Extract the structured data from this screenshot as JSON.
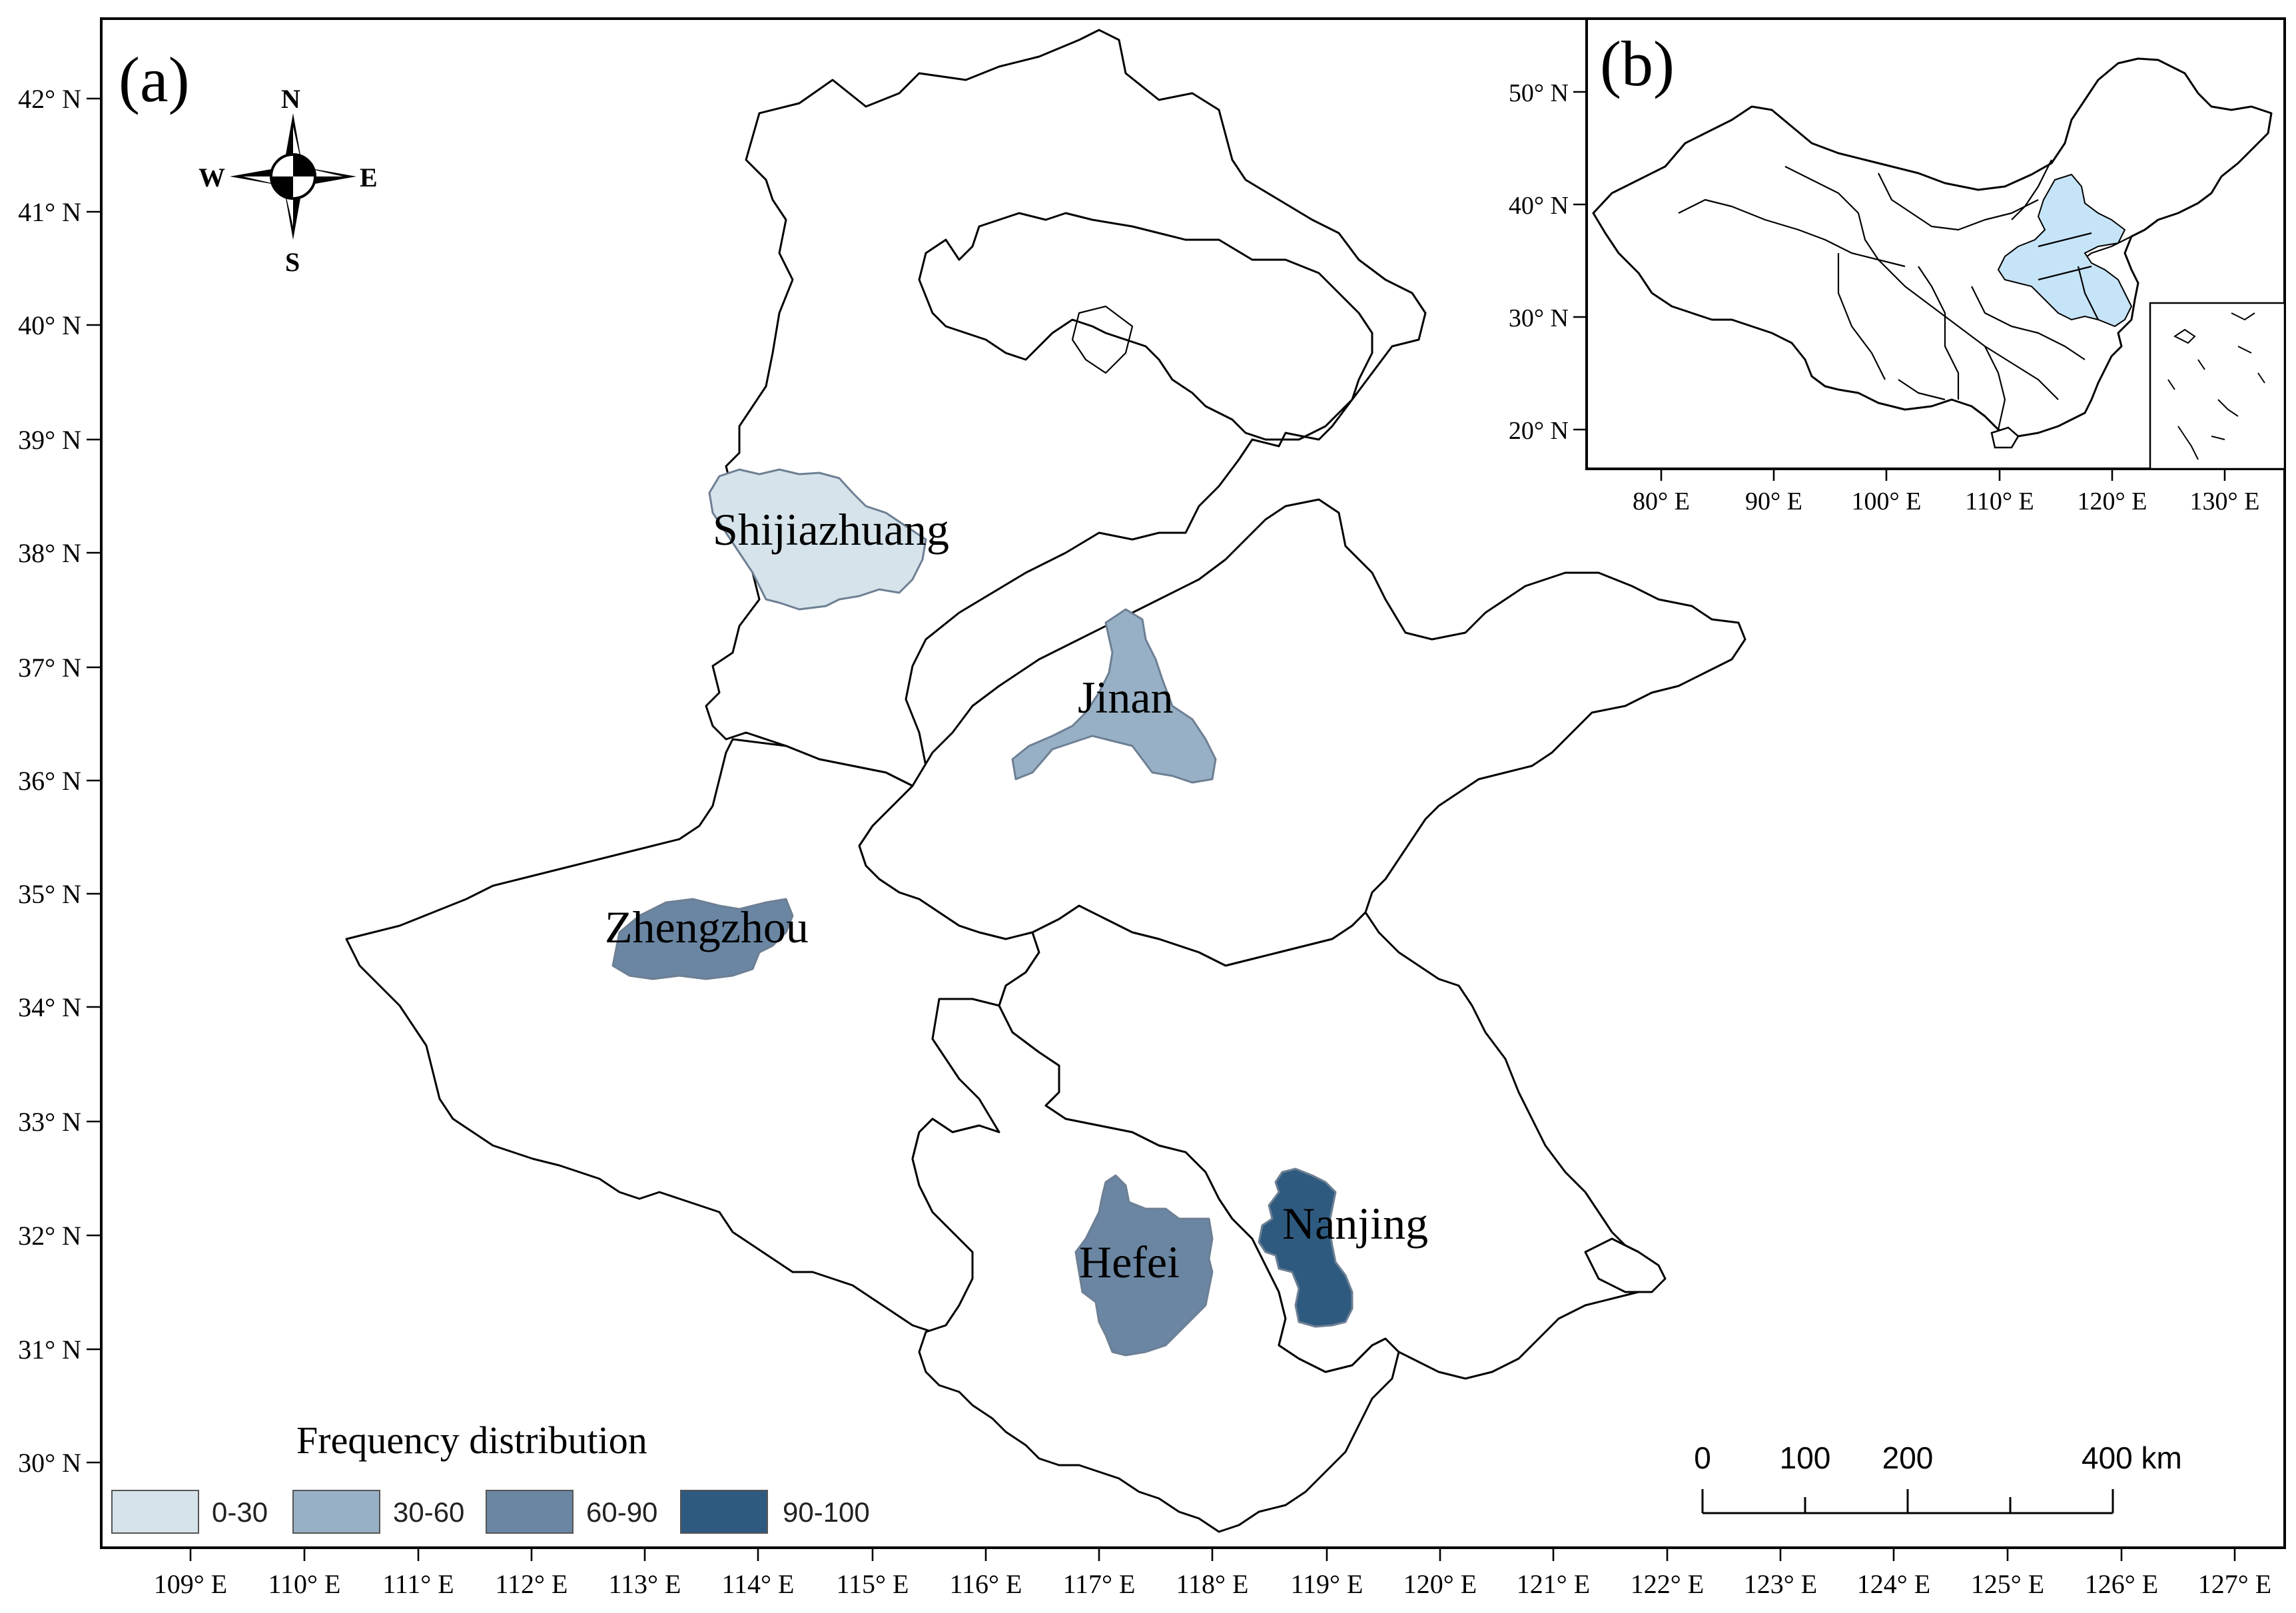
{
  "panel_a": {
    "label": "(a)",
    "compass": {
      "n": "N",
      "s": "S",
      "e": "E",
      "w": "W"
    },
    "lat_labels": [
      "42° N",
      "41° N",
      "40° N",
      "39° N",
      "38° N",
      "37° N",
      "36° N",
      "35° N",
      "34° N",
      "33° N",
      "32° N",
      "31° N",
      "30° N"
    ],
    "lon_labels": [
      "109° E",
      "110° E",
      "111° E",
      "112° E",
      "113° E",
      "114° E",
      "115° E",
      "116° E",
      "117° E",
      "118° E",
      "119° E",
      "120° E",
      "121° E",
      "122° E",
      "123° E",
      "124° E",
      "125° E",
      "126° E",
      "127° E"
    ],
    "cities": [
      {
        "name": "Shijiazhuang",
        "class": "0-30",
        "color": "#d6e3ea"
      },
      {
        "name": "Jinan",
        "class": "30-60",
        "color": "#98b0c5"
      },
      {
        "name": "Zhengzhou",
        "class": "60-90",
        "color": "#6a86a3"
      },
      {
        "name": "Hefei",
        "class": "60-90",
        "color": "#6a86a3"
      },
      {
        "name": "Nanjing",
        "class": "90-100",
        "color": "#2f5a80"
      }
    ],
    "legend": {
      "title": "Frequency distribution",
      "items": [
        {
          "label": "0-30",
          "color": "#d6e3ea"
        },
        {
          "label": "30-60",
          "color": "#98b0c5"
        },
        {
          "label": "60-90",
          "color": "#6a86a3"
        },
        {
          "label": "90-100",
          "color": "#2f5a80"
        }
      ]
    },
    "scale_bar": {
      "labels": [
        "0",
        "100",
        "200",
        "400 km"
      ]
    }
  },
  "panel_b": {
    "label": "(b)",
    "lat_labels": [
      "50° N",
      "40° N",
      "30° N",
      "20° N"
    ],
    "lon_labels": [
      "80° E",
      "90° E",
      "100° E",
      "110° E",
      "120° E",
      "130° E"
    ],
    "highlight_color": "#c6e4f7"
  }
}
